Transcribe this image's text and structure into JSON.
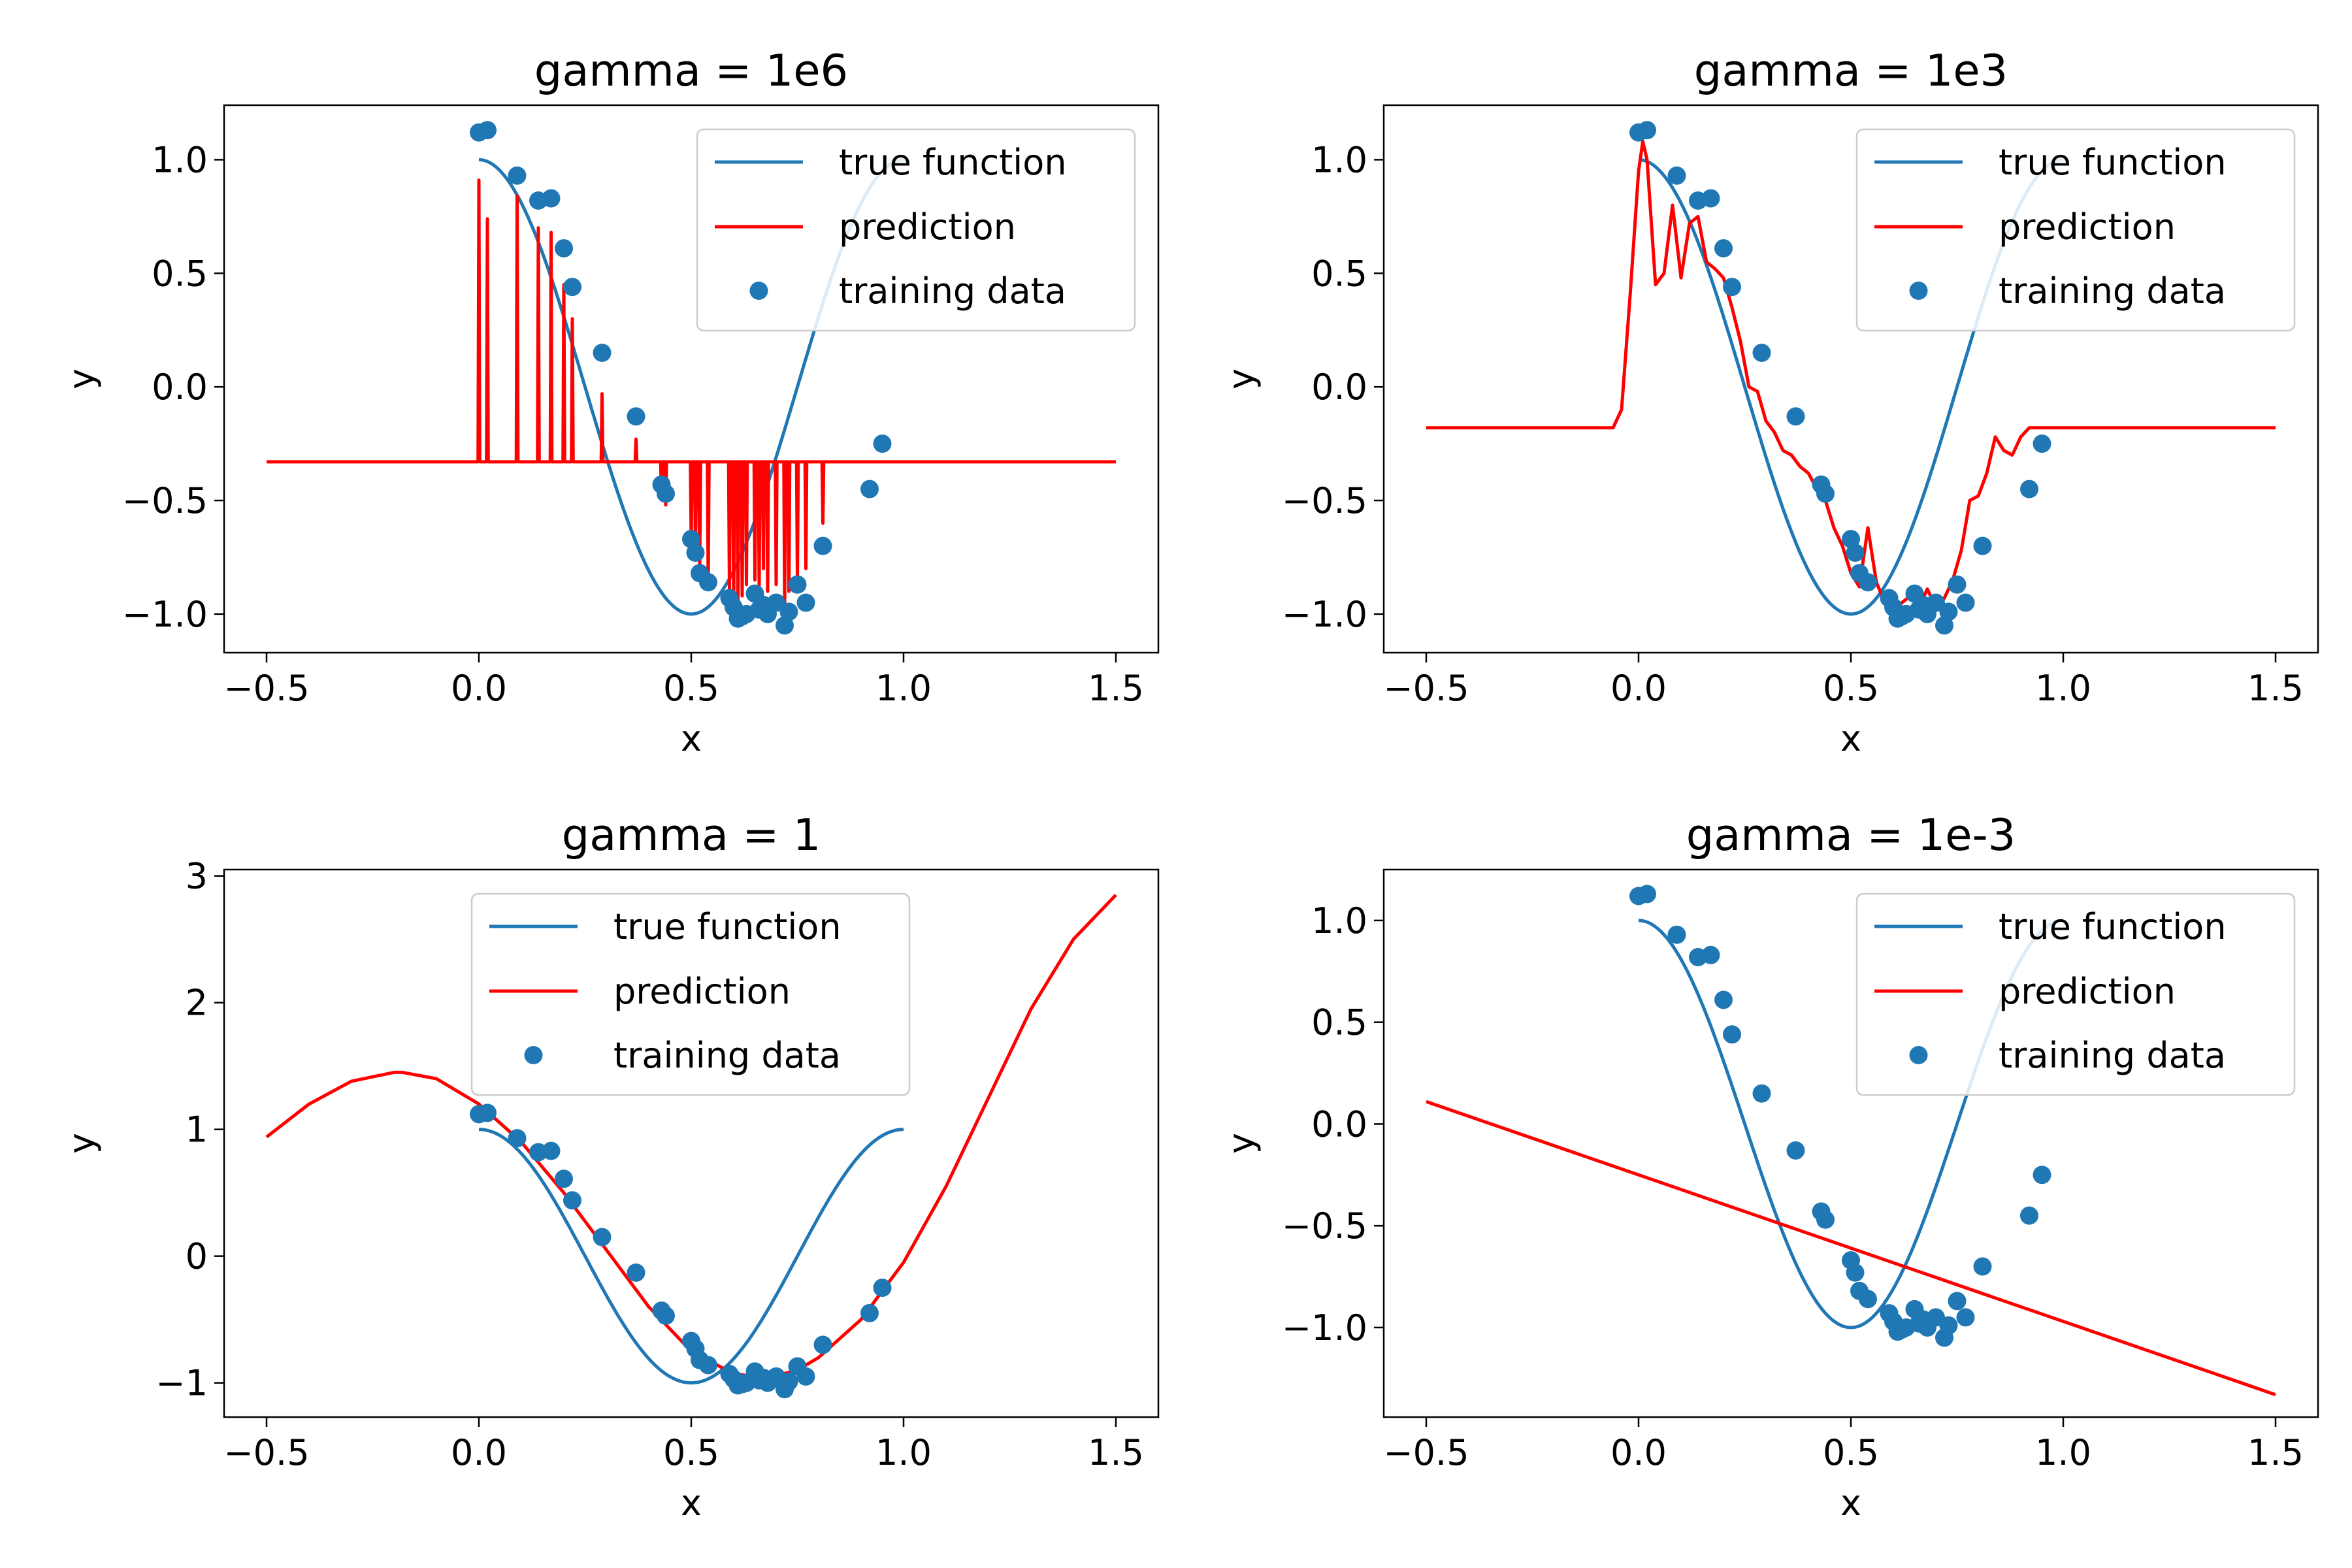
{
  "figure": {
    "colors": {
      "true_function": "#1f77b4",
      "prediction": "#ff0000",
      "training_data": "#1f77b4",
      "axes": "#000000",
      "legend_border": "#cccccc"
    },
    "training_data": {
      "x": [
        0.0,
        0.02,
        0.09,
        0.14,
        0.17,
        0.2,
        0.22,
        0.29,
        0.37,
        0.43,
        0.44,
        0.5,
        0.51,
        0.52,
        0.54,
        0.59,
        0.6,
        0.61,
        0.62,
        0.63,
        0.65,
        0.66,
        0.67,
        0.68,
        0.7,
        0.72,
        0.73,
        0.75,
        0.77,
        0.81,
        0.92,
        0.95
      ],
      "y": [
        1.12,
        1.13,
        0.93,
        0.82,
        0.83,
        0.61,
        0.44,
        0.15,
        -0.13,
        -0.43,
        -0.47,
        -0.67,
        -0.73,
        -0.82,
        -0.86,
        -0.93,
        -0.97,
        -1.02,
        -1.01,
        -1.0,
        -0.91,
        -0.98,
        -0.96,
        -1.0,
        -0.95,
        -1.05,
        -0.99,
        -0.87,
        -0.95,
        -0.7,
        -0.45,
        -0.25
      ]
    }
  },
  "chart_data": [
    {
      "type": "line",
      "title": "gamma = 1e6",
      "xlabel": "x",
      "ylabel": "y",
      "xlim": [
        -0.6,
        1.6
      ],
      "ylim": [
        -1.17,
        1.24
      ],
      "xticks": [
        -0.5,
        0.0,
        0.5,
        1.0,
        1.5
      ],
      "xtick_labels": [
        "−0.5",
        "0.0",
        "0.5",
        "1.0",
        "1.5"
      ],
      "yticks": [
        -1.0,
        -0.5,
        0.0,
        0.5,
        1.0
      ],
      "ytick_labels": [
        "−1.0",
        "−0.5",
        "0.0",
        "0.5",
        "1.0"
      ],
      "legend": {
        "position": "upper right",
        "entries": [
          "true function",
          "prediction",
          "training data"
        ]
      },
      "series": [
        {
          "name": "true function",
          "kind": "line",
          "function": "cos(2*pi*x)",
          "x_range": [
            0,
            1
          ]
        },
        {
          "name": "prediction",
          "kind": "spikes",
          "baseline": -0.33,
          "x_range": [
            -0.5,
            1.5
          ],
          "spike_x": [
            0.0,
            0.02,
            0.09,
            0.14,
            0.17,
            0.2,
            0.22,
            0.29,
            0.37,
            0.43,
            0.44,
            0.5,
            0.51,
            0.52,
            0.54,
            0.59,
            0.6,
            0.61,
            0.62,
            0.63,
            0.65,
            0.66,
            0.67,
            0.68,
            0.7,
            0.72,
            0.73,
            0.75,
            0.77,
            0.81
          ],
          "spike_y": [
            0.91,
            0.74,
            0.84,
            0.7,
            0.68,
            0.45,
            0.3,
            -0.03,
            -0.23,
            -0.48,
            -0.52,
            -0.68,
            -0.75,
            -0.82,
            -0.87,
            -0.91,
            -0.96,
            -0.98,
            -0.92,
            -0.87,
            -0.85,
            -0.88,
            -0.8,
            -0.9,
            -0.87,
            -0.97,
            -0.9,
            -0.85,
            -0.8,
            -0.6
          ]
        },
        {
          "name": "training data",
          "kind": "scatter"
        }
      ]
    },
    {
      "type": "line",
      "title": "gamma = 1e3",
      "xlabel": "x",
      "ylabel": "y",
      "xlim": [
        -0.6,
        1.6
      ],
      "ylim": [
        -1.17,
        1.24
      ],
      "xticks": [
        -0.5,
        0.0,
        0.5,
        1.0,
        1.5
      ],
      "xtick_labels": [
        "−0.5",
        "0.0",
        "0.5",
        "1.0",
        "1.5"
      ],
      "yticks": [
        -1.0,
        -0.5,
        0.0,
        0.5,
        1.0
      ],
      "ytick_labels": [
        "−1.0",
        "−0.5",
        "0.0",
        "0.5",
        "1.0"
      ],
      "legend": {
        "position": "upper right",
        "entries": [
          "true function",
          "prediction",
          "training data"
        ]
      },
      "series": [
        {
          "name": "true function",
          "kind": "line",
          "function": "cos(2*pi*x)",
          "x_range": [
            0,
            1
          ]
        },
        {
          "name": "prediction",
          "kind": "line",
          "x": [
            -0.5,
            -0.06,
            -0.04,
            -0.02,
            0.0,
            0.01,
            0.02,
            0.04,
            0.06,
            0.08,
            0.1,
            0.12,
            0.14,
            0.16,
            0.18,
            0.2,
            0.22,
            0.24,
            0.26,
            0.28,
            0.3,
            0.32,
            0.34,
            0.36,
            0.38,
            0.4,
            0.42,
            0.44,
            0.46,
            0.48,
            0.5,
            0.52,
            0.54,
            0.56,
            0.58,
            0.6,
            0.62,
            0.64,
            0.66,
            0.68,
            0.7,
            0.72,
            0.74,
            0.76,
            0.78,
            0.8,
            0.82,
            0.84,
            0.86,
            0.88,
            0.9,
            0.92,
            0.95,
            0.98,
            1.5
          ],
          "y": [
            -0.18,
            -0.18,
            -0.1,
            0.4,
            0.95,
            1.08,
            1.0,
            0.45,
            0.5,
            0.8,
            0.48,
            0.72,
            0.75,
            0.55,
            0.52,
            0.48,
            0.35,
            0.2,
            0.0,
            -0.02,
            -0.15,
            -0.2,
            -0.28,
            -0.3,
            -0.35,
            -0.38,
            -0.45,
            -0.5,
            -0.62,
            -0.7,
            -0.82,
            -0.88,
            -0.62,
            -0.86,
            -0.95,
            -1.0,
            -0.95,
            -0.92,
            -0.97,
            -0.89,
            -0.97,
            -0.93,
            -0.85,
            -0.72,
            -0.5,
            -0.48,
            -0.38,
            -0.22,
            -0.28,
            -0.3,
            -0.22,
            -0.18,
            -0.18,
            -0.18,
            -0.18
          ]
        },
        {
          "name": "training data",
          "kind": "scatter"
        }
      ]
    },
    {
      "type": "line",
      "title": "gamma = 1",
      "xlabel": "x",
      "ylabel": "y",
      "xlim": [
        -0.6,
        1.6
      ],
      "ylim": [
        -1.27,
        3.05
      ],
      "xticks": [
        -0.5,
        0.0,
        0.5,
        1.0,
        1.5
      ],
      "xtick_labels": [
        "−0.5",
        "0.0",
        "0.5",
        "1.0",
        "1.5"
      ],
      "yticks": [
        -1,
        0,
        1,
        2,
        3
      ],
      "ytick_labels": [
        "−1",
        "0",
        "1",
        "2",
        "3"
      ],
      "legend": {
        "position": "upper center",
        "entries": [
          "true function",
          "prediction",
          "training data"
        ]
      },
      "series": [
        {
          "name": "true function",
          "kind": "line",
          "function": "cos(2*pi*x)",
          "x_range": [
            0,
            1
          ]
        },
        {
          "name": "prediction",
          "kind": "line",
          "x": [
            -0.5,
            -0.4,
            -0.3,
            -0.2,
            -0.18,
            -0.1,
            0.0,
            0.1,
            0.2,
            0.3,
            0.4,
            0.5,
            0.6,
            0.68,
            0.75,
            0.8,
            0.9,
            1.0,
            1.1,
            1.2,
            1.3,
            1.4,
            1.5
          ],
          "y": [
            0.94,
            1.2,
            1.38,
            1.45,
            1.45,
            1.4,
            1.2,
            0.9,
            0.5,
            0.05,
            -0.4,
            -0.75,
            -0.93,
            -0.96,
            -0.9,
            -0.8,
            -0.5,
            -0.05,
            0.55,
            1.25,
            1.95,
            2.5,
            2.85
          ]
        },
        {
          "name": "training data",
          "kind": "scatter"
        }
      ]
    },
    {
      "type": "line",
      "title": "gamma = 1e-3",
      "xlabel": "x",
      "ylabel": "y",
      "xlim": [
        -0.6,
        1.6
      ],
      "ylim": [
        -1.44,
        1.25
      ],
      "xticks": [
        -0.5,
        0.0,
        0.5,
        1.0,
        1.5
      ],
      "xtick_labels": [
        "−0.5",
        "0.0",
        "0.5",
        "1.0",
        "1.5"
      ],
      "yticks": [
        -1.0,
        -0.5,
        0.0,
        0.5,
        1.0
      ],
      "ytick_labels": [
        "−1.0",
        "−0.5",
        "0.0",
        "0.5",
        "1.0"
      ],
      "legend": {
        "position": "upper right",
        "entries": [
          "true function",
          "prediction",
          "training data"
        ]
      },
      "series": [
        {
          "name": "true function",
          "kind": "line",
          "function": "cos(2*pi*x)",
          "x_range": [
            0,
            1
          ]
        },
        {
          "name": "prediction",
          "kind": "line",
          "x": [
            -0.5,
            1.5
          ],
          "y": [
            0.11,
            -1.33
          ]
        },
        {
          "name": "training data",
          "kind": "scatter"
        }
      ]
    }
  ]
}
